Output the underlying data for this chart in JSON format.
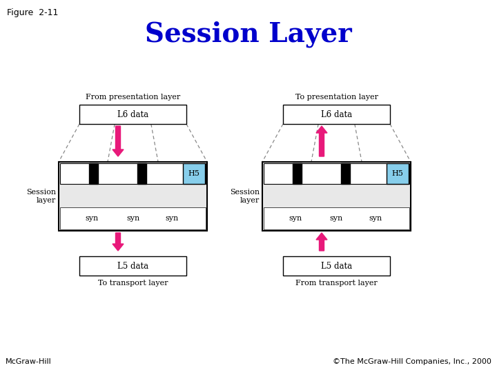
{
  "title": "Session Layer",
  "figure_label": "Figure  2-11",
  "footer_left": "McGraw-Hill",
  "footer_right": "©The McGraw-Hill Companies, Inc., 2000",
  "title_color": "#0000CC",
  "background_color": "#ffffff",
  "arrow_color": "#E8197A",
  "left_diagram": {
    "top_label": "From presentation layer",
    "bottom_label": "To transport layer",
    "l6_label": "L6 data",
    "l5_label": "L5 data",
    "session_label": "Session\nlayer",
    "h5_label": "H5"
  },
  "right_diagram": {
    "top_label": "To presentation layer",
    "bottom_label": "From transport layer",
    "l6_label": "L6 data",
    "l5_label": "L5 data",
    "session_label": "Session\nlayer",
    "h5_label": "H5"
  }
}
